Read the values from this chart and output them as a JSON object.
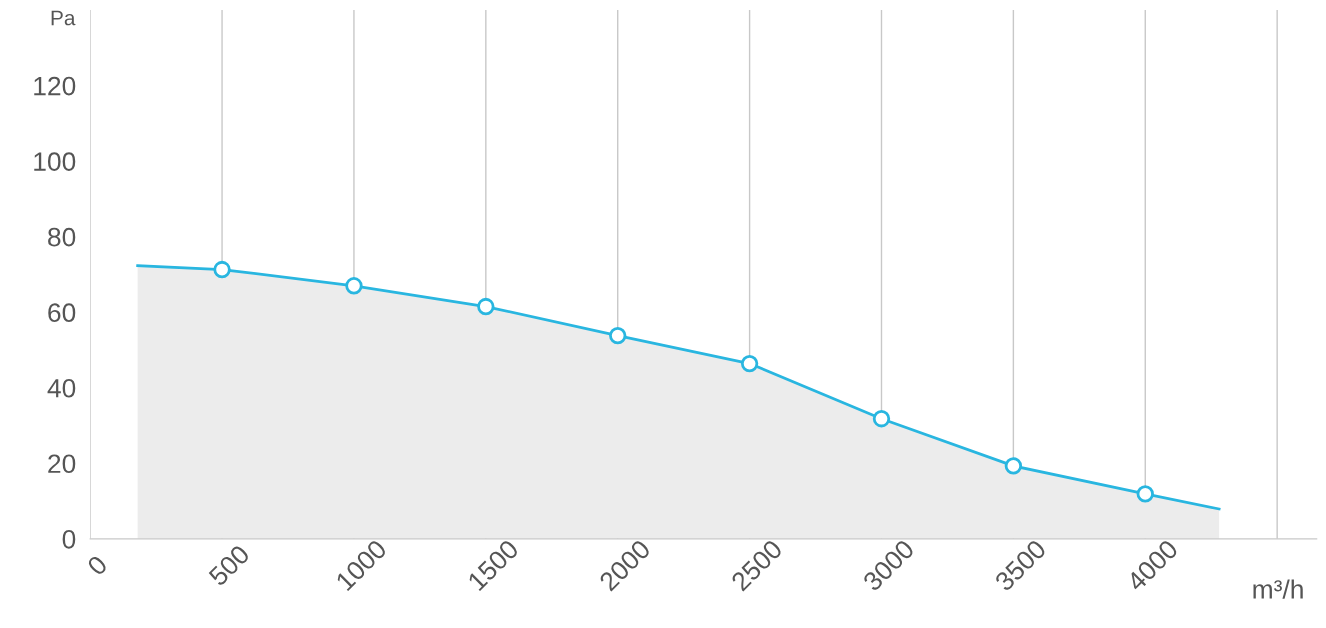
{
  "chart_data": {
    "type": "area",
    "ylabel": "Pa",
    "xlabel": "m³/h",
    "series": [
      {
        "color": "#29b6e0",
        "x": [
          180,
          500,
          1000,
          1500,
          2000,
          2500,
          3000,
          3500,
          4000,
          4280
        ],
        "values": [
          72.3,
          71.3,
          67,
          61.5,
          53.8,
          46.4,
          31.8,
          19.3,
          11.9,
          7.9
        ],
        "marker": "none"
      },
      {
        "type": "scatter",
        "color": "#29b6e0",
        "x": [
          500,
          1000,
          1500,
          2000,
          2500,
          3000,
          3500,
          4000
        ],
        "values": [
          71.3,
          67,
          61.5,
          53.8,
          46.4,
          31.8,
          19.3,
          11.9
        ],
        "marker": "circle"
      }
    ],
    "xlim": [
      0,
      4650
    ],
    "xticks": [
      0,
      500,
      1000,
      1500,
      2000,
      2500,
      3000,
      3500,
      4000,
      {
        "value": 4500,
        "label": null
      }
    ],
    "ylim": [
      0,
      140
    ],
    "yticks": [
      0,
      20,
      40,
      60,
      80,
      100,
      120
    ],
    "grid": "x"
  }
}
